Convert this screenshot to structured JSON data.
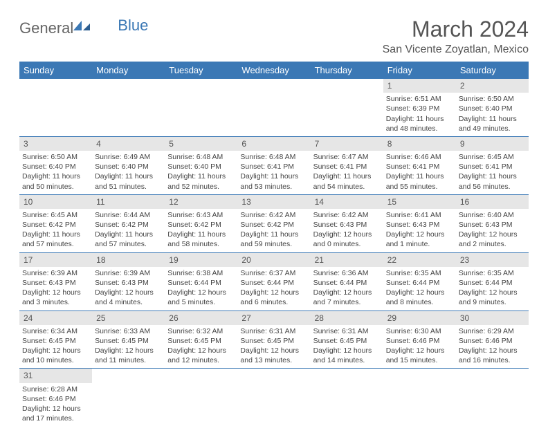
{
  "logo": {
    "textA": "General",
    "textB": "Blue"
  },
  "title": "March 2024",
  "location": "San Vicente Zoyatlan, Mexico",
  "colors": {
    "header_bg": "#3b78b5",
    "header_fg": "#ffffff",
    "daynum_bg": "#e6e6e6",
    "text": "#444444",
    "border": "#3b78b5"
  },
  "dayHeaders": [
    "Sunday",
    "Monday",
    "Tuesday",
    "Wednesday",
    "Thursday",
    "Friday",
    "Saturday"
  ],
  "weeks": [
    [
      null,
      null,
      null,
      null,
      null,
      {
        "n": "1",
        "sr": "6:51 AM",
        "ss": "6:39 PM",
        "dl": "11 hours and 48 minutes."
      },
      {
        "n": "2",
        "sr": "6:50 AM",
        "ss": "6:40 PM",
        "dl": "11 hours and 49 minutes."
      }
    ],
    [
      {
        "n": "3",
        "sr": "6:50 AM",
        "ss": "6:40 PM",
        "dl": "11 hours and 50 minutes."
      },
      {
        "n": "4",
        "sr": "6:49 AM",
        "ss": "6:40 PM",
        "dl": "11 hours and 51 minutes."
      },
      {
        "n": "5",
        "sr": "6:48 AM",
        "ss": "6:40 PM",
        "dl": "11 hours and 52 minutes."
      },
      {
        "n": "6",
        "sr": "6:48 AM",
        "ss": "6:41 PM",
        "dl": "11 hours and 53 minutes."
      },
      {
        "n": "7",
        "sr": "6:47 AM",
        "ss": "6:41 PM",
        "dl": "11 hours and 54 minutes."
      },
      {
        "n": "8",
        "sr": "6:46 AM",
        "ss": "6:41 PM",
        "dl": "11 hours and 55 minutes."
      },
      {
        "n": "9",
        "sr": "6:45 AM",
        "ss": "6:41 PM",
        "dl": "11 hours and 56 minutes."
      }
    ],
    [
      {
        "n": "10",
        "sr": "6:45 AM",
        "ss": "6:42 PM",
        "dl": "11 hours and 57 minutes."
      },
      {
        "n": "11",
        "sr": "6:44 AM",
        "ss": "6:42 PM",
        "dl": "11 hours and 57 minutes."
      },
      {
        "n": "12",
        "sr": "6:43 AM",
        "ss": "6:42 PM",
        "dl": "11 hours and 58 minutes."
      },
      {
        "n": "13",
        "sr": "6:42 AM",
        "ss": "6:42 PM",
        "dl": "11 hours and 59 minutes."
      },
      {
        "n": "14",
        "sr": "6:42 AM",
        "ss": "6:43 PM",
        "dl": "12 hours and 0 minutes."
      },
      {
        "n": "15",
        "sr": "6:41 AM",
        "ss": "6:43 PM",
        "dl": "12 hours and 1 minute."
      },
      {
        "n": "16",
        "sr": "6:40 AM",
        "ss": "6:43 PM",
        "dl": "12 hours and 2 minutes."
      }
    ],
    [
      {
        "n": "17",
        "sr": "6:39 AM",
        "ss": "6:43 PM",
        "dl": "12 hours and 3 minutes."
      },
      {
        "n": "18",
        "sr": "6:39 AM",
        "ss": "6:43 PM",
        "dl": "12 hours and 4 minutes."
      },
      {
        "n": "19",
        "sr": "6:38 AM",
        "ss": "6:44 PM",
        "dl": "12 hours and 5 minutes."
      },
      {
        "n": "20",
        "sr": "6:37 AM",
        "ss": "6:44 PM",
        "dl": "12 hours and 6 minutes."
      },
      {
        "n": "21",
        "sr": "6:36 AM",
        "ss": "6:44 PM",
        "dl": "12 hours and 7 minutes."
      },
      {
        "n": "22",
        "sr": "6:35 AM",
        "ss": "6:44 PM",
        "dl": "12 hours and 8 minutes."
      },
      {
        "n": "23",
        "sr": "6:35 AM",
        "ss": "6:44 PM",
        "dl": "12 hours and 9 minutes."
      }
    ],
    [
      {
        "n": "24",
        "sr": "6:34 AM",
        "ss": "6:45 PM",
        "dl": "12 hours and 10 minutes."
      },
      {
        "n": "25",
        "sr": "6:33 AM",
        "ss": "6:45 PM",
        "dl": "12 hours and 11 minutes."
      },
      {
        "n": "26",
        "sr": "6:32 AM",
        "ss": "6:45 PM",
        "dl": "12 hours and 12 minutes."
      },
      {
        "n": "27",
        "sr": "6:31 AM",
        "ss": "6:45 PM",
        "dl": "12 hours and 13 minutes."
      },
      {
        "n": "28",
        "sr": "6:31 AM",
        "ss": "6:45 PM",
        "dl": "12 hours and 14 minutes."
      },
      {
        "n": "29",
        "sr": "6:30 AM",
        "ss": "6:46 PM",
        "dl": "12 hours and 15 minutes."
      },
      {
        "n": "30",
        "sr": "6:29 AM",
        "ss": "6:46 PM",
        "dl": "12 hours and 16 minutes."
      }
    ],
    [
      {
        "n": "31",
        "sr": "6:28 AM",
        "ss": "6:46 PM",
        "dl": "12 hours and 17 minutes."
      },
      null,
      null,
      null,
      null,
      null,
      null
    ]
  ],
  "labels": {
    "sunrise": "Sunrise:",
    "sunset": "Sunset:",
    "daylight": "Daylight:"
  }
}
